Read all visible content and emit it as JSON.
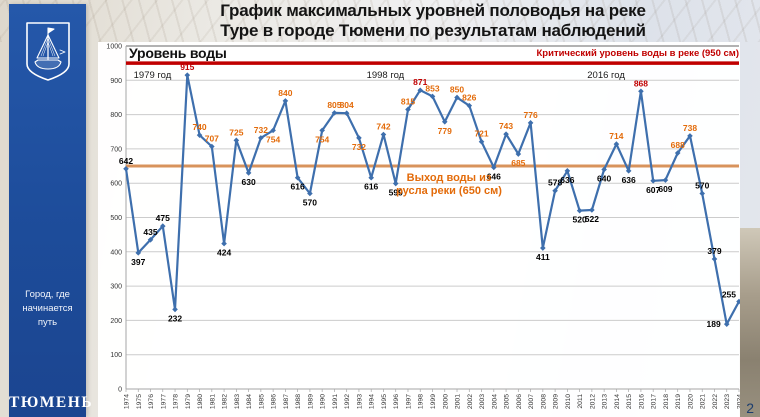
{
  "page": {
    "number": "2"
  },
  "sidebar": {
    "emblem": "tyumen-coat-of-arms-ship",
    "motto_line1": "Город, где",
    "motto_line2": "начинается",
    "motto_line3": "путь",
    "city": "ТЮМЕНЬ"
  },
  "title": {
    "line1": "График максимальных уровней половодья на реке",
    "line2": "Туре в городе Тюмени по результатам наблюдений"
  },
  "chart_data": {
    "type": "line",
    "title": "Уровень воды",
    "xlabel": "",
    "ylabel": "",
    "ylim": [
      0,
      1000
    ],
    "ytick_step": 100,
    "grid": true,
    "series_color": "#3e6fad",
    "x": [
      1974,
      1975,
      1976,
      1977,
      1978,
      1979,
      1980,
      1981,
      1982,
      1983,
      1984,
      1985,
      1986,
      1987,
      1988,
      1989,
      1990,
      1991,
      1992,
      1993,
      1994,
      1995,
      1996,
      1997,
      1998,
      1999,
      2000,
      2001,
      2002,
      2003,
      2004,
      2005,
      2006,
      2007,
      2008,
      2009,
      2010,
      2011,
      2012,
      2013,
      2014,
      2015,
      2016,
      2017,
      2018,
      2019,
      2020,
      2021,
      2022,
      2023,
      2024
    ],
    "values": [
      642,
      397,
      435,
      475,
      232,
      915,
      740,
      707,
      424,
      725,
      630,
      732,
      754,
      840,
      616,
      570,
      754,
      805,
      804,
      732,
      616,
      742,
      599,
      815,
      871,
      853,
      779,
      850,
      826,
      721,
      646,
      743,
      685,
      776,
      411,
      578,
      636,
      520,
      522,
      640,
      714,
      636,
      868,
      607,
      609,
      688,
      738,
      570,
      379,
      189,
      255
    ],
    "critical_line": {
      "value": 950,
      "label": "Критический уровень воды в реке (950 см)",
      "color": "#c00000"
    },
    "overflow_line": {
      "value": 650,
      "label_line1": "Выход воды из",
      "label_line2": "русла реки (650 см)",
      "color": "#d8935c",
      "label_color": "#e36b0a"
    },
    "era_labels": [
      {
        "text": "1979 год",
        "year": 1979
      },
      {
        "text": "1998 год",
        "year": 1998
      },
      {
        "text": "2016 год",
        "year": 2016
      }
    ],
    "label_colors": {
      "critical": "#c00000",
      "above_overflow": "#e36b0a",
      "normal": "#000000"
    },
    "label_below_years": [
      1975,
      1978,
      1982,
      1984,
      1986,
      1988,
      1989,
      1990,
      1993,
      1994,
      1996,
      2000,
      2004,
      2006,
      2008,
      2010,
      2011,
      2012,
      2013,
      2015,
      2017,
      2018
    ],
    "label_placement_overrides": {
      "2023": "left",
      "2024": "above-left"
    }
  }
}
